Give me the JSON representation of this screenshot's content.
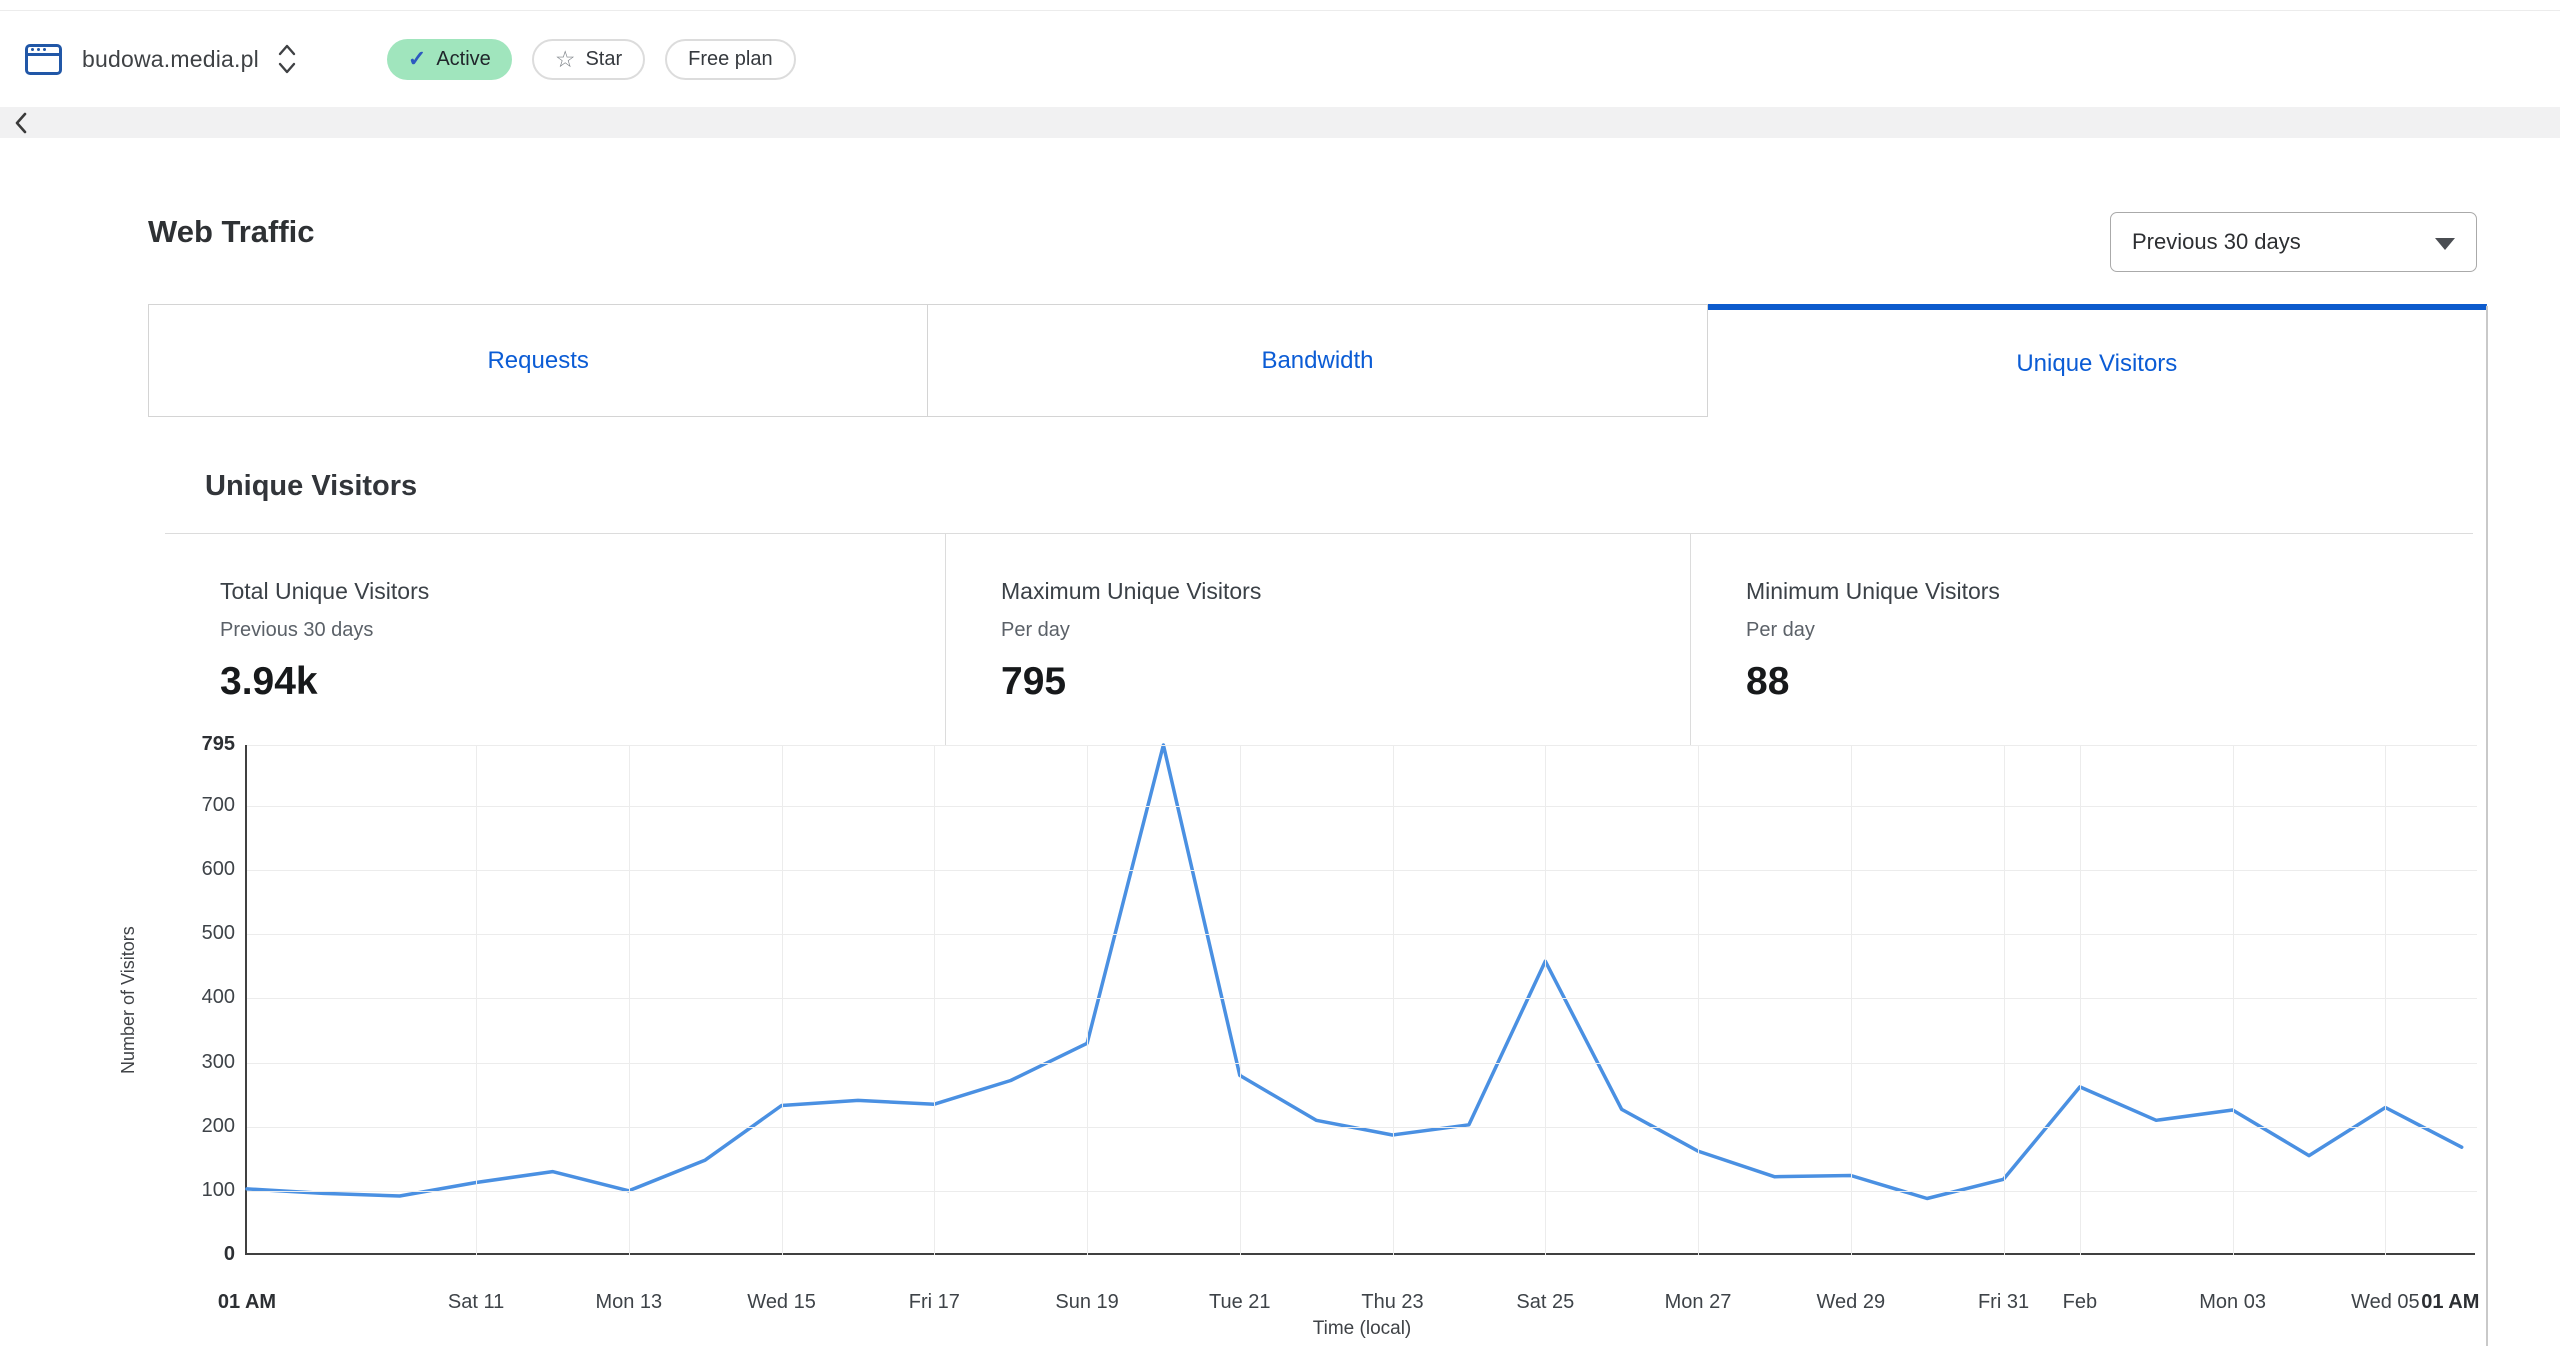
{
  "topbar": {
    "domain": "budowa.media.pl",
    "status_badge": "Active",
    "star_label": "Star",
    "plan_label": "Free plan"
  },
  "glyphs": {
    "check": "✓",
    "star": "☆",
    "back": "‹"
  },
  "icons": {
    "site-icon": "browser-window",
    "domain-toggle-icon": "up-down-chevrons",
    "active-check-icon": "check",
    "star-icon": "star-outline",
    "select-caret-icon": "caret-down",
    "back-icon": "chevron-left"
  },
  "page": {
    "title": "Web Traffic"
  },
  "range_select": {
    "value": "Previous 30 days"
  },
  "tabs": [
    {
      "label": "Requests",
      "active": false
    },
    {
      "label": "Bandwidth",
      "active": false
    },
    {
      "label": "Unique Visitors",
      "active": true
    }
  ],
  "section": {
    "heading": "Unique Visitors"
  },
  "stats": [
    {
      "label": "Total Unique Visitors",
      "sublabel": "Previous 30 days",
      "value": "3.94k"
    },
    {
      "label": "Maximum Unique Visitors",
      "sublabel": "Per day",
      "value": "795"
    },
    {
      "label": "Minimum Unique Visitors",
      "sublabel": "Per day",
      "value": "88"
    }
  ],
  "chart_data": {
    "type": "line",
    "title": "Unique Visitors",
    "xlabel": "Time (local)",
    "ylabel": "Number of Visitors",
    "ylim": [
      0,
      795
    ],
    "xlim_days": [
      0,
      29.2
    ],
    "grid": true,
    "legend": "none",
    "line_color": "#4a90e2",
    "x": [
      "Jan 08",
      "Jan 09",
      "Jan 10",
      "Jan 11",
      "Jan 12",
      "Jan 13",
      "Jan 14",
      "Jan 15",
      "Jan 16",
      "Jan 17",
      "Jan 18",
      "Jan 19",
      "Jan 20",
      "Jan 21",
      "Jan 22",
      "Jan 23",
      "Jan 24",
      "Jan 25",
      "Jan 26",
      "Jan 27",
      "Jan 28",
      "Jan 29",
      "Jan 30",
      "Jan 31",
      "Feb 01",
      "Feb 02",
      "Feb 03",
      "Feb 04",
      "Feb 05",
      "Feb 06"
    ],
    "values": [
      103,
      96,
      92,
      113,
      130,
      100,
      148,
      233,
      241,
      235,
      272,
      330,
      795,
      280,
      210,
      187,
      203,
      458,
      227,
      162,
      122,
      124,
      88,
      118,
      262,
      210,
      226,
      155,
      230,
      168
    ],
    "y_ticks": [
      {
        "value": 795,
        "bold": true
      },
      {
        "value": 700
      },
      {
        "value": 600
      },
      {
        "value": 500
      },
      {
        "value": 400
      },
      {
        "value": 300
      },
      {
        "value": 200
      },
      {
        "value": 100
      },
      {
        "value": 0,
        "bold": true
      }
    ],
    "x_ticks": [
      {
        "label": "01 AM",
        "day": 0,
        "bold": true,
        "grid": false
      },
      {
        "label": "Sat 11",
        "day": 3
      },
      {
        "label": "Mon 13",
        "day": 5
      },
      {
        "label": "Wed 15",
        "day": 7
      },
      {
        "label": "Fri 17",
        "day": 9
      },
      {
        "label": "Sun 19",
        "day": 11
      },
      {
        "label": "Tue 21",
        "day": 13
      },
      {
        "label": "Thu 23",
        "day": 15
      },
      {
        "label": "Sat 25",
        "day": 17
      },
      {
        "label": "Mon 27",
        "day": 19
      },
      {
        "label": "Wed 29",
        "day": 21
      },
      {
        "label": "Fri 31",
        "day": 23
      },
      {
        "label": "Feb",
        "day": 24
      },
      {
        "label": "Mon 03",
        "day": 26
      },
      {
        "label": "Wed 05",
        "day": 28
      },
      {
        "label": "01 AM",
        "day": 28.85,
        "bold": true,
        "grid": false
      }
    ]
  }
}
